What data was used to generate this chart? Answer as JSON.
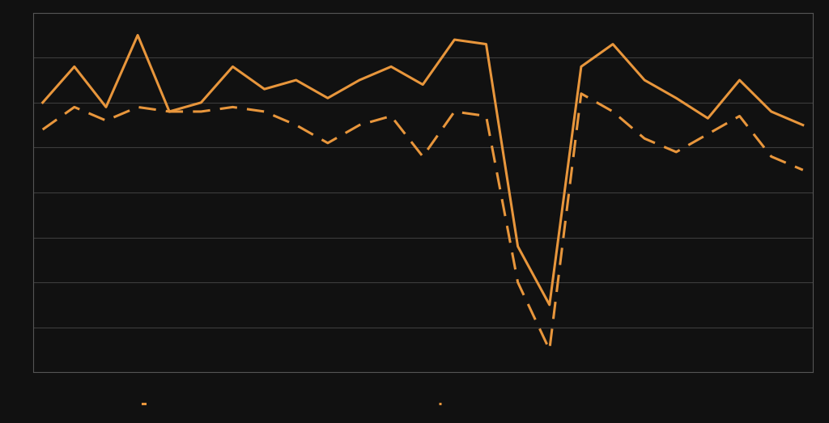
{
  "solid_line": [
    42,
    58,
    40,
    72,
    38,
    42,
    58,
    48,
    52,
    44,
    52,
    58,
    50,
    70,
    68,
    -22,
    -48,
    58,
    68,
    52,
    44,
    35,
    52,
    38,
    32
  ],
  "dashed_line": [
    30,
    40,
    34,
    40,
    38,
    38,
    40,
    38,
    32,
    24,
    32,
    36,
    18,
    38,
    36,
    -38,
    -68,
    46,
    38,
    26,
    20,
    28,
    36,
    18,
    12
  ],
  "line_color": "#E8963C",
  "background_color": "#111111",
  "grid_color": "#3d3d3d",
  "border_color": "#555555",
  "ylim": [
    -78,
    82
  ],
  "n_gridlines": 9,
  "linewidth_solid": 2.2,
  "linewidth_dashed": 2.2,
  "dash_on": 7,
  "dash_off": 4
}
